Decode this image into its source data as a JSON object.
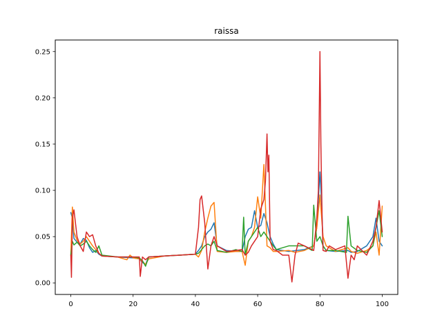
{
  "chart_data": {
    "type": "line",
    "title": "raissa",
    "xlabel": "",
    "ylabel": "",
    "xlim": [
      -5,
      105
    ],
    "ylim": [
      -0.0125,
      0.2625
    ],
    "xticks": [
      0,
      20,
      40,
      60,
      80,
      100
    ],
    "yticks": [
      0.0,
      0.05,
      0.1,
      0.15,
      0.2,
      0.25
    ],
    "xtick_labels": [
      "0",
      "20",
      "40",
      "60",
      "80",
      "100"
    ],
    "ytick_labels": [
      "0.00",
      "0.05",
      "0.10",
      "0.15",
      "0.20",
      "0.25"
    ],
    "grid": false,
    "legend": "none",
    "series": [
      {
        "color": "#1f77b4",
        "x": [
          0,
          0.5,
          1,
          2,
          3,
          4,
          5,
          6,
          7,
          8,
          9,
          10,
          15,
          20,
          22,
          23,
          24,
          25,
          30,
          35,
          40,
          41,
          42,
          43,
          44,
          45,
          46,
          47,
          50,
          53,
          55,
          56,
          57,
          58,
          59,
          60,
          61,
          62,
          63,
          64,
          65,
          66,
          70,
          75,
          78,
          79,
          80,
          80.5,
          81,
          82,
          85,
          89,
          90,
          92,
          95,
          97,
          98,
          99,
          100
        ],
        "values": [
          0.076,
          0.07,
          0.048,
          0.044,
          0.042,
          0.048,
          0.046,
          0.038,
          0.033,
          0.035,
          0.031,
          0.029,
          0.028,
          0.027,
          0.026,
          0.022,
          0.02,
          0.028,
          0.029,
          0.03,
          0.031,
          0.035,
          0.04,
          0.05,
          0.055,
          0.058,
          0.065,
          0.04,
          0.035,
          0.034,
          0.034,
          0.05,
          0.058,
          0.06,
          0.078,
          0.06,
          0.062,
          0.075,
          0.065,
          0.05,
          0.042,
          0.036,
          0.034,
          0.036,
          0.04,
          0.06,
          0.12,
          0.09,
          0.04,
          0.035,
          0.034,
          0.035,
          0.033,
          0.034,
          0.04,
          0.05,
          0.07,
          0.045,
          0.04
        ]
      },
      {
        "color": "#ff7f0e",
        "x": [
          0,
          0.5,
          1,
          2,
          3,
          4,
          5,
          6,
          7,
          8,
          9,
          10,
          15,
          18,
          19,
          20,
          22,
          23,
          24,
          25,
          30,
          35,
          40,
          41,
          42,
          43,
          44,
          45,
          46,
          47,
          50,
          53,
          55,
          56,
          57,
          58,
          59,
          60,
          61,
          62,
          63,
          64,
          65,
          66,
          70,
          72,
          75,
          78,
          79,
          80,
          81,
          82,
          85,
          89,
          90,
          92,
          95,
          97,
          98,
          99,
          100
        ],
        "values": [
          0.03,
          0.082,
          0.055,
          0.046,
          0.042,
          0.045,
          0.05,
          0.045,
          0.04,
          0.036,
          0.032,
          0.029,
          0.028,
          0.025,
          0.03,
          0.027,
          0.026,
          0.023,
          0.02,
          0.026,
          0.029,
          0.03,
          0.031,
          0.028,
          0.035,
          0.055,
          0.07,
          0.083,
          0.087,
          0.034,
          0.033,
          0.034,
          0.034,
          0.019,
          0.045,
          0.05,
          0.06,
          0.093,
          0.07,
          0.128,
          0.04,
          0.038,
          0.034,
          0.034,
          0.035,
          0.033,
          0.035,
          0.04,
          0.06,
          0.095,
          0.05,
          0.04,
          0.034,
          0.038,
          0.034,
          0.032,
          0.035,
          0.04,
          0.055,
          0.03,
          0.083
        ]
      },
      {
        "color": "#2ca02c",
        "x": [
          0,
          0.5,
          1,
          2,
          3,
          4,
          5,
          6,
          7,
          8,
          9,
          10,
          15,
          20,
          22,
          23,
          24,
          25,
          30,
          35,
          40,
          41,
          42,
          43,
          44,
          45,
          46,
          47,
          50,
          53,
          55,
          55.5,
          56,
          57,
          58,
          59,
          60,
          61,
          62,
          63,
          64,
          65,
          66,
          70,
          75,
          77.5,
          78,
          79,
          80,
          81,
          82,
          85,
          88.5,
          89,
          90,
          92,
          95,
          97,
          98,
          99,
          100
        ],
        "values": [
          0.03,
          0.045,
          0.041,
          0.044,
          0.04,
          0.042,
          0.045,
          0.04,
          0.036,
          0.033,
          0.04,
          0.03,
          0.028,
          0.028,
          0.027,
          0.024,
          0.018,
          0.028,
          0.029,
          0.03,
          0.031,
          0.032,
          0.036,
          0.04,
          0.042,
          0.04,
          0.045,
          0.035,
          0.033,
          0.036,
          0.034,
          0.071,
          0.03,
          0.045,
          0.05,
          0.055,
          0.06,
          0.05,
          0.055,
          0.05,
          0.045,
          0.04,
          0.036,
          0.04,
          0.04,
          0.035,
          0.084,
          0.045,
          0.05,
          0.04,
          0.035,
          0.035,
          0.033,
          0.072,
          0.04,
          0.035,
          0.033,
          0.04,
          0.06,
          0.078,
          0.05
        ]
      },
      {
        "color": "#d62728",
        "x": [
          0,
          0.2,
          0.5,
          1,
          2,
          3,
          4,
          5,
          6,
          7,
          8,
          9,
          10,
          15,
          20,
          22,
          22.3,
          23,
          24,
          25,
          30,
          35,
          40,
          41,
          41.5,
          42,
          43,
          44,
          45,
          46,
          47,
          50,
          53,
          55,
          56,
          57,
          58,
          59,
          60,
          61,
          62,
          62.5,
          63,
          63.3,
          63.6,
          64,
          65,
          66,
          68,
          70,
          71,
          72,
          73,
          75,
          78,
          79,
          79.5,
          80,
          80.3,
          80.7,
          81,
          82,
          83,
          85,
          88,
          89,
          90,
          91,
          92,
          95,
          97,
          98,
          99,
          100
        ],
        "values": [
          0.03,
          0.006,
          0.07,
          0.079,
          0.05,
          0.04,
          0.034,
          0.055,
          0.05,
          0.052,
          0.04,
          0.032,
          0.029,
          0.028,
          0.028,
          0.028,
          0.007,
          0.028,
          0.025,
          0.028,
          0.029,
          0.03,
          0.031,
          0.06,
          0.09,
          0.094,
          0.065,
          0.015,
          0.04,
          0.05,
          0.04,
          0.034,
          0.035,
          0.036,
          0.03,
          0.033,
          0.04,
          0.045,
          0.05,
          0.08,
          0.09,
          0.11,
          0.161,
          0.12,
          0.138,
          0.045,
          0.036,
          0.035,
          0.03,
          0.03,
          0.001,
          0.03,
          0.043,
          0.04,
          0.035,
          0.07,
          0.1,
          0.25,
          0.15,
          0.07,
          0.035,
          0.034,
          0.04,
          0.036,
          0.04,
          0.005,
          0.03,
          0.025,
          0.04,
          0.03,
          0.045,
          0.06,
          0.089,
          0.055
        ]
      }
    ]
  }
}
